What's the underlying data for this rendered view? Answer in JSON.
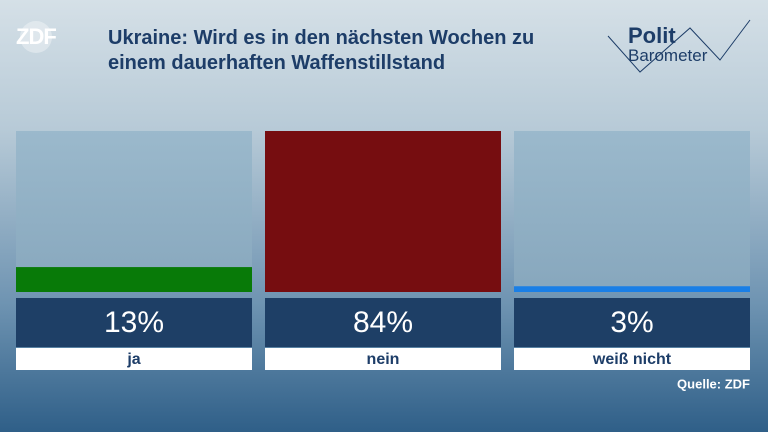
{
  "branding": {
    "channel": "ZDF",
    "show_line1": "Polit",
    "show_line2": "Barometer"
  },
  "chart_data": {
    "type": "bar",
    "title": "Ukraine: Wird es in den nächsten Wochen zu einem dauerhaften Waffenstillstand",
    "categories": [
      "ja",
      "nein",
      "weiß nicht"
    ],
    "values": [
      13,
      84,
      3
    ],
    "value_labels": [
      "13%",
      "84%",
      "3%"
    ],
    "colors": [
      "#087a08",
      "#760d10",
      "#1a7fe6"
    ],
    "ylim": [
      0,
      84
    ],
    "source": "Quelle: ZDF"
  }
}
